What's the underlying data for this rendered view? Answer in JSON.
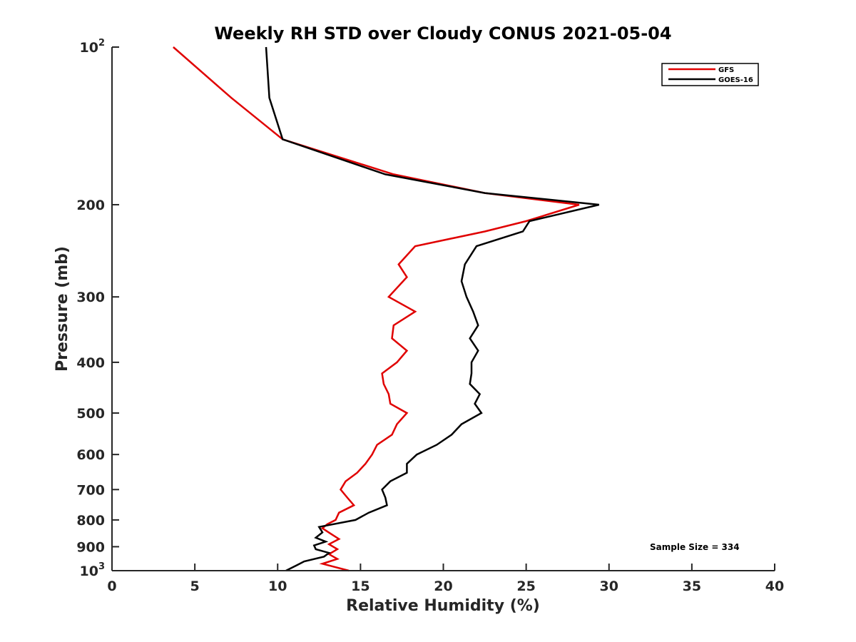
{
  "chart_data": {
    "type": "line",
    "title": "Weekly RH STD over Cloudy CONUS 2021-05-04",
    "xlabel": "Relative Humidity (%)",
    "ylabel": "Pressure (mb)",
    "xlim": [
      0,
      40
    ],
    "ylim": [
      100,
      1000
    ],
    "yscale": "log",
    "y_reversed": true,
    "x_ticks": [
      0,
      5,
      10,
      15,
      20,
      25,
      30,
      35,
      40
    ],
    "y_ticks": [
      {
        "value": 100,
        "label": "10",
        "sup": "2"
      },
      {
        "value": 200,
        "label": "200"
      },
      {
        "value": 300,
        "label": "300"
      },
      {
        "value": 400,
        "label": "400"
      },
      {
        "value": 500,
        "label": "500"
      },
      {
        "value": 600,
        "label": "600"
      },
      {
        "value": 700,
        "label": "700"
      },
      {
        "value": 800,
        "label": "800"
      },
      {
        "value": 900,
        "label": "900"
      },
      {
        "value": 1000,
        "label": "10",
        "sup": "3"
      }
    ],
    "grid": false,
    "legend_position": "top-right",
    "series": [
      {
        "name": "GFS",
        "color": "#e00000",
        "points": [
          [
            3.7,
            100
          ],
          [
            7.2,
            125
          ],
          [
            10.3,
            150
          ],
          [
            17.0,
            175
          ],
          [
            22.5,
            190
          ],
          [
            28.2,
            200
          ],
          [
            25.0,
            215
          ],
          [
            22.5,
            225
          ],
          [
            18.3,
            240
          ],
          [
            17.3,
            260
          ],
          [
            17.8,
            275
          ],
          [
            16.7,
            300
          ],
          [
            18.3,
            320
          ],
          [
            17.0,
            340
          ],
          [
            16.9,
            360
          ],
          [
            17.8,
            380
          ],
          [
            17.2,
            400
          ],
          [
            16.3,
            420
          ],
          [
            16.4,
            440
          ],
          [
            16.7,
            460
          ],
          [
            16.8,
            480
          ],
          [
            17.8,
            500
          ],
          [
            17.2,
            525
          ],
          [
            16.9,
            550
          ],
          [
            16.0,
            575
          ],
          [
            15.7,
            600
          ],
          [
            15.3,
            625
          ],
          [
            14.8,
            650
          ],
          [
            14.1,
            675
          ],
          [
            13.8,
            700
          ],
          [
            14.2,
            725
          ],
          [
            14.6,
            750
          ],
          [
            13.7,
            775
          ],
          [
            13.5,
            800
          ],
          [
            13.0,
            815
          ],
          [
            12.7,
            830
          ],
          [
            13.2,
            850
          ],
          [
            13.7,
            870
          ],
          [
            13.1,
            890
          ],
          [
            13.6,
            910
          ],
          [
            13.1,
            930
          ],
          [
            13.6,
            950
          ],
          [
            12.7,
            970
          ],
          [
            14.3,
            1000
          ]
        ]
      },
      {
        "name": "GOES-16",
        "color": "#000000",
        "points": [
          [
            9.3,
            100
          ],
          [
            9.5,
            125
          ],
          [
            10.3,
            150
          ],
          [
            16.5,
            175
          ],
          [
            22.5,
            190
          ],
          [
            29.4,
            200
          ],
          [
            25.2,
            215
          ],
          [
            24.8,
            225
          ],
          [
            22.0,
            240
          ],
          [
            21.3,
            260
          ],
          [
            21.1,
            280
          ],
          [
            21.4,
            300
          ],
          [
            21.8,
            320
          ],
          [
            22.1,
            340
          ],
          [
            21.6,
            360
          ],
          [
            22.1,
            380
          ],
          [
            21.7,
            400
          ],
          [
            21.7,
            420
          ],
          [
            21.6,
            440
          ],
          [
            22.2,
            460
          ],
          [
            21.9,
            480
          ],
          [
            22.3,
            500
          ],
          [
            21.1,
            525
          ],
          [
            20.5,
            550
          ],
          [
            19.6,
            575
          ],
          [
            18.4,
            600
          ],
          [
            17.8,
            625
          ],
          [
            17.8,
            650
          ],
          [
            16.8,
            675
          ],
          [
            16.3,
            700
          ],
          [
            16.5,
            725
          ],
          [
            16.6,
            750
          ],
          [
            15.5,
            775
          ],
          [
            14.7,
            800
          ],
          [
            12.5,
            825
          ],
          [
            12.7,
            845
          ],
          [
            12.3,
            865
          ],
          [
            12.9,
            880
          ],
          [
            12.2,
            895
          ],
          [
            12.3,
            910
          ],
          [
            13.1,
            925
          ],
          [
            12.8,
            940
          ],
          [
            11.6,
            960
          ],
          [
            11.2,
            975
          ],
          [
            10.5,
            1000
          ]
        ]
      }
    ],
    "annotation": "Sample Size = 334"
  }
}
